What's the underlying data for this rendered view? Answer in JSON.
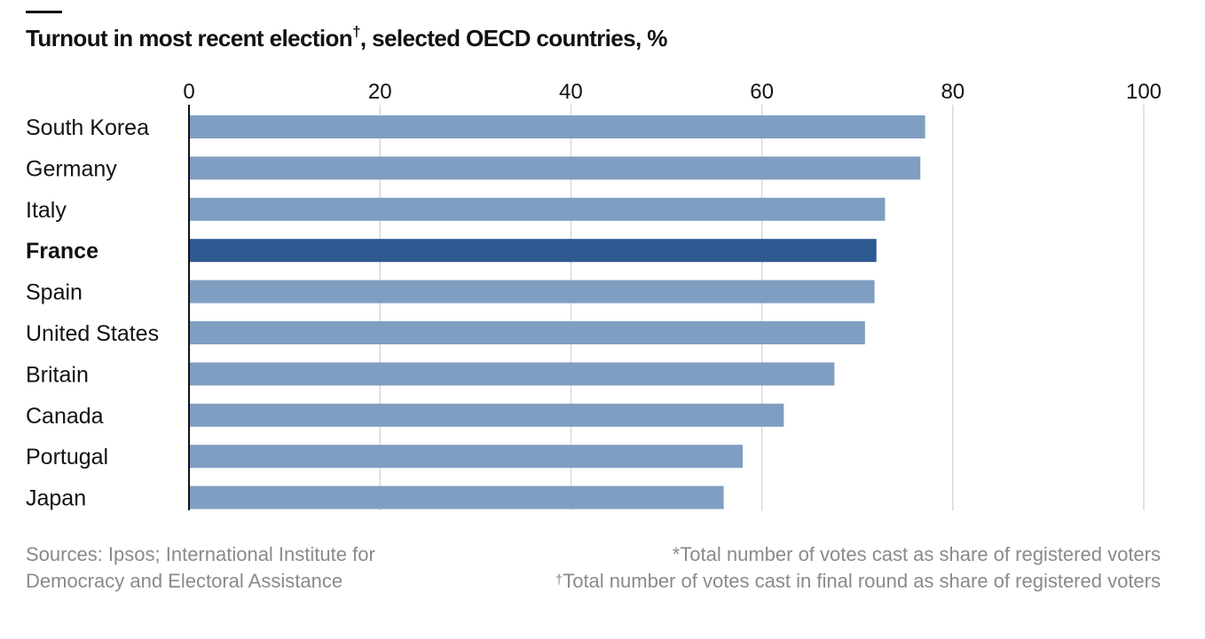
{
  "chart_data": {
    "type": "bar",
    "orientation": "horizontal",
    "title": "Turnout in most recent election",
    "title_mark": "†",
    "title_suffix": ", selected OECD countries, %",
    "categories": [
      "South Korea",
      "Germany",
      "Italy",
      "France",
      "Spain",
      "United States",
      "Britain",
      "Canada",
      "Portugal",
      "Japan"
    ],
    "values": [
      77.1,
      76.6,
      72.9,
      72.0,
      71.8,
      70.8,
      67.6,
      62.3,
      58.0,
      56.0
    ],
    "highlight": "France",
    "xlim": [
      0,
      100
    ],
    "xticks": [
      0,
      20,
      40,
      60,
      80,
      100
    ],
    "grid": true,
    "colors": {
      "bar": "#7f9ec1",
      "highlight": "#2e5a92",
      "grid": "#d9d9d9",
      "axis": "#121212"
    }
  },
  "footer": {
    "source": "Sources: Ipsos; International Institute for Democracy and Electoral Assistance",
    "note1": "*Total number of votes cast as share of registered voters",
    "note2_mark": "†",
    "note2": "Total number of votes cast in final round as share of registered voters"
  }
}
